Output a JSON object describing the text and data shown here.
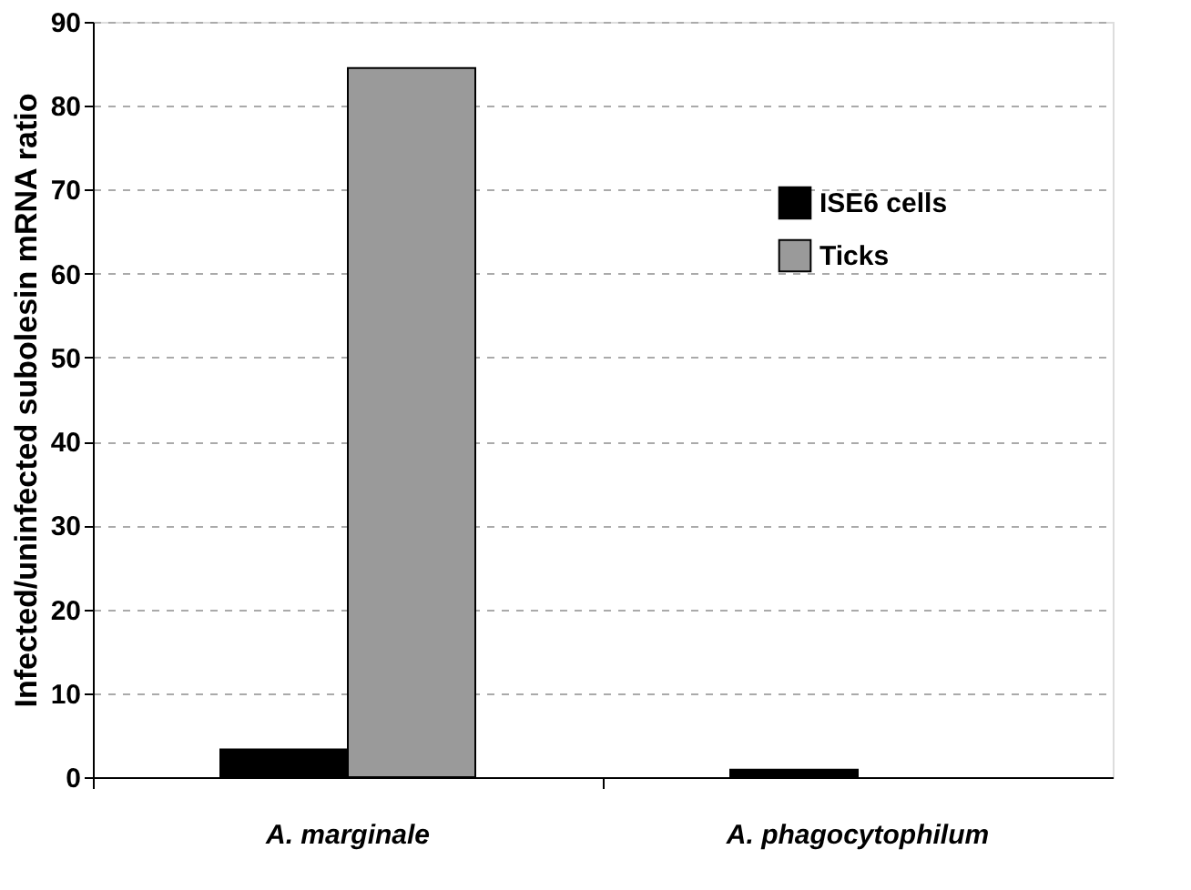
{
  "chart_data": {
    "type": "bar",
    "ylabel": "Infected/uninfected subolesin mRNA ratio",
    "categories": [
      "A. marginale",
      "A. phagocytophilum"
    ],
    "series": [
      {
        "name": "ISE6 cells",
        "color": "#000000",
        "values": [
          3.3,
          0.9
        ]
      },
      {
        "name": "Ticks",
        "color": "#9a9a9a",
        "values": [
          84.5,
          null
        ]
      }
    ],
    "ylim": [
      0,
      90
    ],
    "yticks": [
      0,
      10,
      20,
      30,
      40,
      50,
      60,
      70,
      80,
      90
    ],
    "grid": "y",
    "legend": "top right"
  }
}
